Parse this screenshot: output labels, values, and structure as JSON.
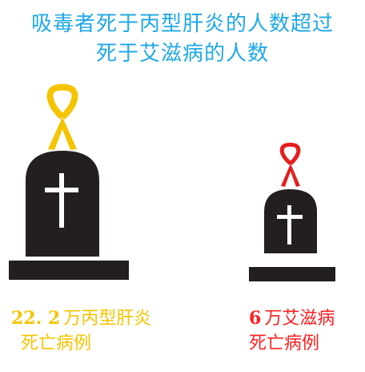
{
  "title": {
    "line1": "吸毒者死于丙型肝炎的人数超过",
    "line2": "死于艾滋病的人数"
  },
  "hepatitis": {
    "number": "22. 2",
    "label_line1": "万丙型肝炎",
    "label_line2": "死亡病例",
    "ribbon_color": "#f5c400",
    "ribbon_icon": "yellow-awareness-ribbon-icon"
  },
  "hiv": {
    "number": "6",
    "label_line1": "万艾滋病",
    "label_line2": "死亡病例",
    "ribbon_color": "#e41f1f",
    "ribbon_icon": "red-awareness-ribbon-icon"
  },
  "colors": {
    "title": "#1fa8e8",
    "tombstone": "#231f20",
    "cross": "#ffffff"
  }
}
